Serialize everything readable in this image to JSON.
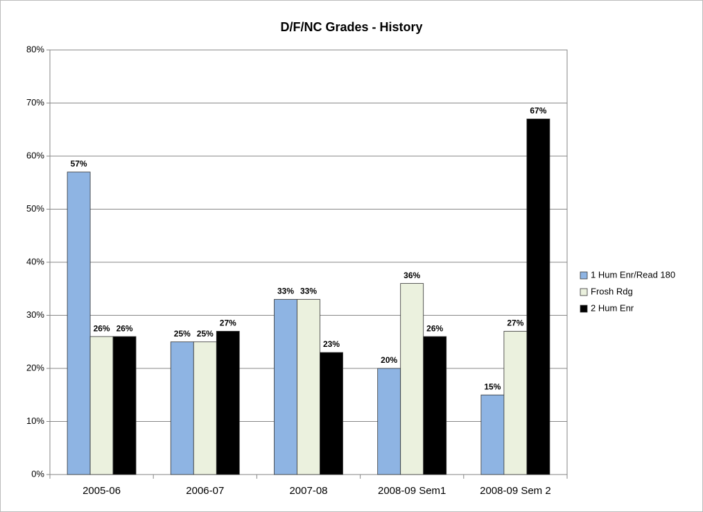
{
  "chart_data": {
    "type": "bar",
    "title": "D/F/NC Grades - History",
    "categories": [
      "2005-06",
      "2006-07",
      "2007-08",
      "2008-09 Sem1",
      "2008-09 Sem 2"
    ],
    "series": [
      {
        "name": "1 Hum Enr/Read 180",
        "color": "#8eb4e3",
        "values": [
          57,
          25,
          33,
          20,
          15
        ],
        "value_labels": [
          "57%",
          "25%",
          "33%",
          "20%",
          "15%"
        ]
      },
      {
        "name": "Frosh Rdg",
        "color": "#ebf1de",
        "values": [
          26,
          25,
          33,
          36,
          27
        ],
        "value_labels": [
          "26%",
          "25%",
          "33%",
          "36%",
          "27%"
        ]
      },
      {
        "name": "2 Hum Enr",
        "color": "#000000",
        "values": [
          26,
          27,
          23,
          26,
          67
        ],
        "value_labels": [
          "26%",
          "27%",
          "23%",
          "26%",
          "67%"
        ]
      }
    ],
    "ylim": [
      0,
      80
    ],
    "yticks": [
      {
        "value": 0,
        "label": "0%"
      },
      {
        "value": 10,
        "label": "10%"
      },
      {
        "value": 20,
        "label": "20%"
      },
      {
        "value": 30,
        "label": "30%"
      },
      {
        "value": 40,
        "label": "40%"
      },
      {
        "value": 50,
        "label": "50%"
      },
      {
        "value": 60,
        "label": "60%"
      },
      {
        "value": 70,
        "label": "70%"
      },
      {
        "value": 80,
        "label": "80%"
      }
    ],
    "grid": true,
    "legend": "right"
  }
}
